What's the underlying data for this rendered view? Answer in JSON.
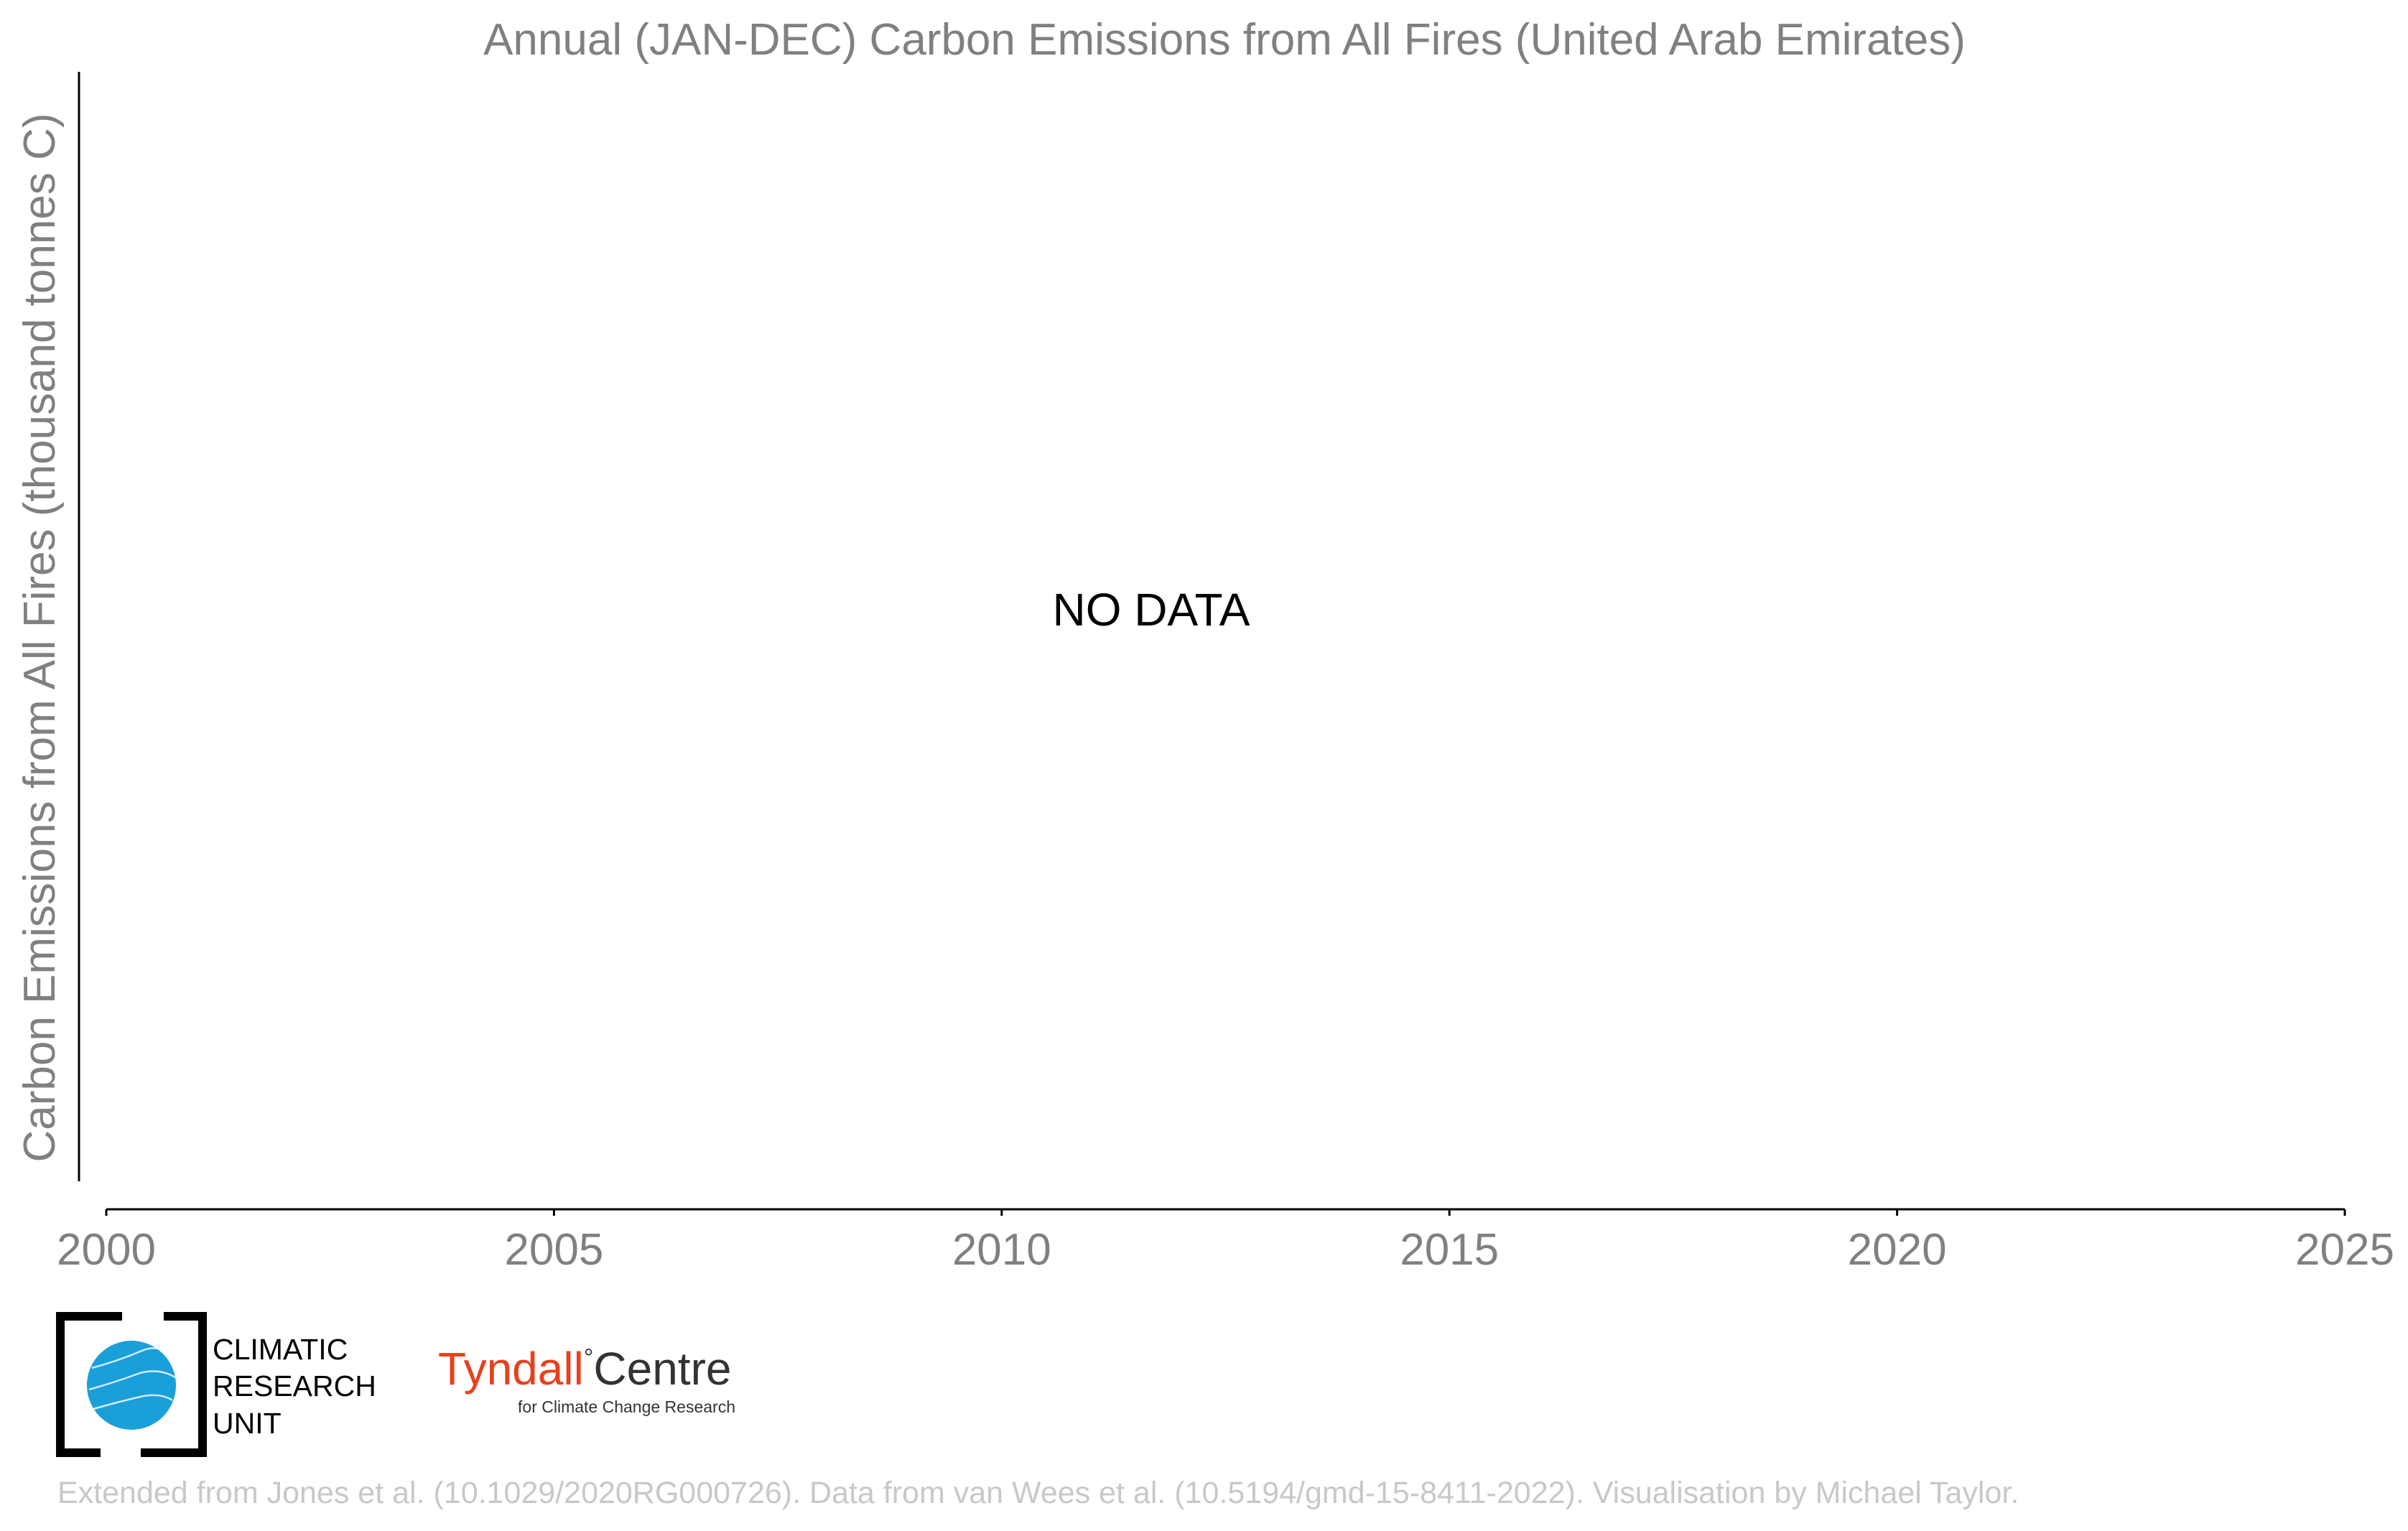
{
  "chart_data": {
    "type": "line",
    "title": "Annual (JAN-DEC) Carbon Emissions from All Fires (United Arab Emirates)",
    "xlabel": "",
    "ylabel": "Carbon Emissions from All Fires (thousand tonnes C)",
    "xlim": [
      2000,
      2025
    ],
    "x_ticks": [
      "2000",
      "2005",
      "2010",
      "2015",
      "2020",
      "2025"
    ],
    "series": [],
    "annotation": "NO DATA",
    "grid": false,
    "legend": "none"
  },
  "footer": {
    "credit": "Extended from Jones et al. (10.1029/2020RG000726). Data from van Wees et al. (10.5194/gmd-15-8411-2022). Visualisation by Michael Taylor."
  },
  "logos": {
    "cru": {
      "line1": "CLIMATIC",
      "line2": "RESEARCH",
      "line3": "UNIT"
    },
    "tyndall": {
      "name_part1": "Tyndall",
      "degree": "°",
      "name_part2": "Centre",
      "tagline": "for Climate Change Research"
    }
  },
  "colors": {
    "text_gray": "#808080",
    "axis": "#000000",
    "footer_gray": "#c8c8c8",
    "tyndall_red": "#e8401c",
    "cru_blue": "#1a9fd9"
  }
}
